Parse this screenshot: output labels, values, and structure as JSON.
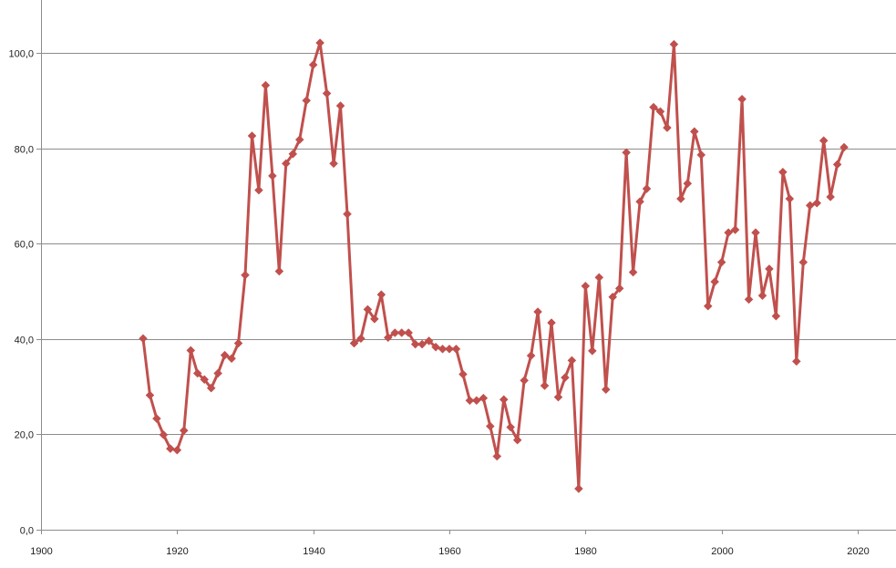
{
  "chart_data": {
    "type": "line",
    "title": "",
    "xlabel": "",
    "ylabel": "",
    "xlim": [
      1900,
      2020
    ],
    "ylim": [
      0,
      110
    ],
    "x_ticks": [
      "1900",
      "1920",
      "1940",
      "1960",
      "1980",
      "2000",
      "2020"
    ],
    "y_ticks": [
      "0,0",
      "20,0",
      "40,0",
      "60,0",
      "80,0",
      "100,0"
    ],
    "x_tick_values": [
      1900,
      1920,
      1940,
      1960,
      1980,
      2000,
      2020
    ],
    "y_tick_values": [
      0,
      20,
      40,
      60,
      80,
      100
    ],
    "grid": "horizontal",
    "legend": "none",
    "series": [
      {
        "color": "#c0504d",
        "marker": "diamond",
        "x": [
          1915,
          1916,
          1917,
          1918,
          1919,
          1920,
          1921,
          1922,
          1923,
          1924,
          1925,
          1926,
          1927,
          1928,
          1929,
          1930,
          1931,
          1932,
          1933,
          1934,
          1935,
          1936,
          1937,
          1938,
          1939,
          1940,
          1941,
          1942,
          1943,
          1944,
          1945,
          1946,
          1947,
          1948,
          1949,
          1950,
          1951,
          1952,
          1953,
          1954,
          1955,
          1956,
          1957,
          1958,
          1959,
          1960,
          1961,
          1962,
          1963,
          1964,
          1965,
          1966,
          1967,
          1968,
          1969,
          1970,
          1971,
          1972,
          1973,
          1974,
          1975,
          1976,
          1977,
          1978,
          1979,
          1980,
          1981,
          1982,
          1983,
          1984,
          1985,
          1986,
          1987,
          1988,
          1989,
          1990,
          1991,
          1992,
          1993,
          1994,
          1995,
          1996,
          1997,
          1998,
          1999,
          2000,
          2001,
          2002,
          2003,
          2004,
          2005,
          2006,
          2007,
          2008,
          2009,
          2010,
          2011,
          2012,
          2013,
          2014,
          2015,
          2016,
          2017,
          2018
        ],
        "values": [
          40.1,
          28.2,
          23.3,
          19.9,
          17.0,
          16.7,
          20.8,
          37.6,
          32.8,
          31.5,
          29.7,
          32.8,
          36.6,
          35.9,
          39.1,
          53.4,
          82.6,
          71.2,
          93.2,
          74.2,
          54.2,
          76.8,
          78.8,
          81.8,
          90.0,
          97.5,
          102.1,
          91.5,
          76.8,
          88.9,
          66.2,
          39.1,
          40.1,
          46.2,
          44.2,
          49.3,
          40.3,
          41.3,
          41.3,
          41.3,
          38.9,
          38.9,
          39.6,
          38.3,
          37.9,
          37.9,
          37.9,
          32.6,
          27.1,
          27.1,
          27.6,
          21.7,
          15.4,
          27.3,
          21.5,
          18.8,
          31.3,
          36.5,
          45.7,
          30.2,
          43.4,
          27.8,
          31.9,
          35.5,
          8.6,
          51.1,
          37.5,
          52.9,
          29.4,
          48.8,
          50.6,
          79.1,
          54.0,
          68.8,
          71.5,
          88.6,
          87.7,
          84.3,
          101.8,
          69.4,
          72.6,
          83.5,
          78.6,
          46.9,
          52.0,
          56.1,
          62.3,
          62.9,
          90.3,
          48.3,
          62.3,
          49.1,
          54.7,
          44.8,
          75.0,
          69.4,
          35.3,
          56.1,
          68.0,
          68.5,
          81.6,
          69.8,
          76.6,
          80.2
        ]
      }
    ]
  }
}
